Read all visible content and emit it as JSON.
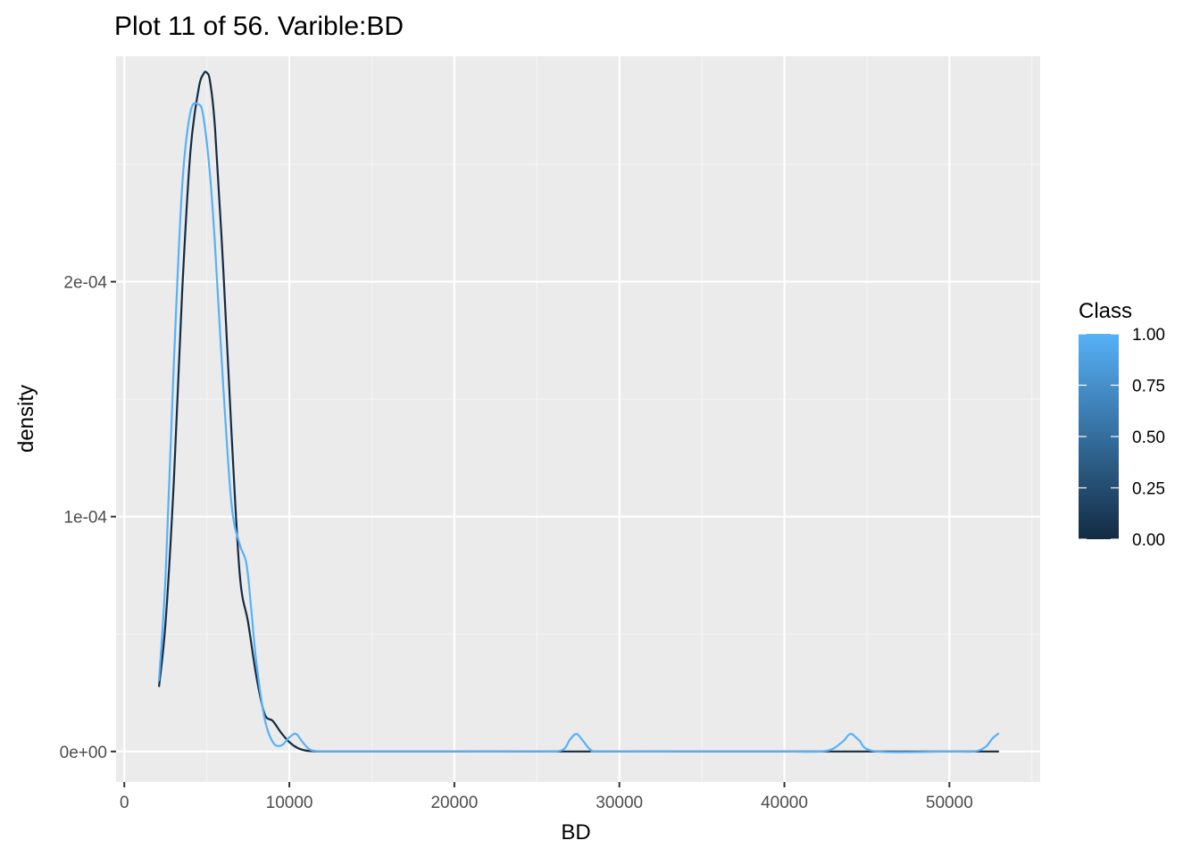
{
  "chart_data": {
    "type": "line",
    "title": "Plot 11 of 56. Varible:BD",
    "xlabel": "BD",
    "ylabel": "density",
    "xlim": [
      -500,
      55500
    ],
    "ylim": [
      -1.3e-05,
      0.000296
    ],
    "x_ticks": [
      0,
      10000,
      20000,
      30000,
      40000,
      50000
    ],
    "x_tick_labels": [
      "0",
      "10000",
      "20000",
      "30000",
      "40000",
      "50000"
    ],
    "y_ticks": [
      0,
      0.0001,
      0.0002
    ],
    "y_tick_labels": [
      "0e+00",
      "1e-04",
      "2e-04"
    ],
    "grid": true,
    "legend": {
      "title": "Class",
      "placement": "right",
      "type": "colorbar",
      "range": [
        0.0,
        1.0
      ],
      "labels": [
        "0.00",
        "0.25",
        "0.50",
        "0.75",
        "1.00"
      ],
      "low_color": "#132B43",
      "high_color": "#56B1F7"
    },
    "series": [
      {
        "name": "Class 0",
        "class_value": 0,
        "color": "#132B43",
        "x": [
          2100,
          2500,
          3000,
          3500,
          4000,
          4500,
          4800,
          5000,
          5200,
          5500,
          6000,
          6500,
          7000,
          7500,
          8000,
          8500,
          9000,
          9500,
          10000,
          10500,
          11000,
          11500,
          12000,
          15000,
          20000,
          25000,
          30000,
          35000,
          40000,
          45000,
          50000,
          53000
        ],
        "values": [
          2.75e-05,
          5.5e-05,
          0.000115,
          0.000195,
          0.000255,
          0.000282,
          0.0002885,
          0.000289,
          0.000285,
          0.000265,
          0.000205,
          0.000135,
          7.5e-05,
          5.5e-05,
          3.2e-05,
          1.6e-05,
          1.3e-05,
          8e-06,
          4e-06,
          1.5e-06,
          4e-07,
          1e-07,
          0,
          0,
          0,
          0,
          0,
          0,
          0,
          0,
          0,
          0
        ]
      },
      {
        "name": "Class 1",
        "class_value": 1,
        "color": "#56B1F7",
        "x": [
          2100,
          2500,
          3000,
          3500,
          4000,
          4500,
          4800,
          5200,
          5500,
          6000,
          6500,
          7000,
          7400,
          7700,
          8000,
          8500,
          9000,
          9500,
          10000,
          10400,
          10800,
          11200,
          11600,
          12000,
          15000,
          20000,
          25000,
          26500,
          27000,
          27400,
          27800,
          28300,
          29000,
          35000,
          40000,
          42500,
          43500,
          44000,
          44500,
          45500,
          50000,
          51500,
          52200,
          52600,
          53000
        ],
        "values": [
          3e-05,
          7.5e-05,
          0.000165,
          0.00024,
          0.000272,
          0.0002755,
          0.00027,
          0.000245,
          0.000215,
          0.000155,
          0.000105,
          8.8e-05,
          8e-05,
          6e-05,
          3.8e-05,
          1.4e-05,
          4e-06,
          2.5e-06,
          6e-06,
          7.5e-06,
          4e-06,
          1e-06,
          2e-07,
          0,
          0,
          0,
          0,
          5e-07,
          5e-06,
          7.5e-06,
          4.5e-06,
          5e-07,
          0,
          0,
          0,
          2e-07,
          4e-06,
          7.5e-06,
          5e-06,
          1e-07,
          0,
          0,
          2e-06,
          5.5e-06,
          7.8e-06
        ]
      }
    ]
  }
}
